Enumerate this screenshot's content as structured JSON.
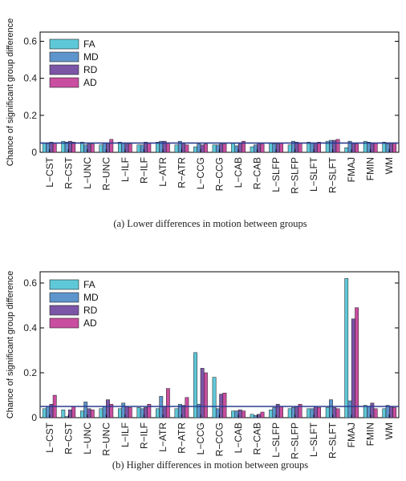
{
  "chart_data": [
    {
      "type": "bar",
      "caption": "(a) Lower differences in motion between groups",
      "ylabel": "Chance of significant group difference",
      "ylim": [
        0,
        0.65
      ],
      "yticks": [
        "0",
        "0.2",
        "0.4",
        "0.6"
      ],
      "reference_line": 0.05,
      "legend_position": "top-left",
      "categories": [
        "L−CST",
        "R−CST",
        "L−UNC",
        "R−UNC",
        "L−ILF",
        "R−ILF",
        "L−ATR",
        "R−ATR",
        "L−CCG",
        "R−CCG",
        "L−CAB",
        "R−CAB",
        "L−SLFP",
        "R−SLFP",
        "L−SLFT",
        "R−SLFT",
        "FMAJ",
        "FMIN",
        "WM"
      ],
      "series": [
        {
          "name": "FA",
          "color": "#5ec8d8",
          "values": [
            0.05,
            0.06,
            0.055,
            0.04,
            0.055,
            0.04,
            0.055,
            0.04,
            0.03,
            0.04,
            0.05,
            0.03,
            0.05,
            0.04,
            0.055,
            0.06,
            0.025,
            0.06,
            0.055
          ]
        },
        {
          "name": "MD",
          "color": "#5d95cc",
          "values": [
            0.045,
            0.055,
            0.04,
            0.05,
            0.05,
            0.04,
            0.06,
            0.06,
            0.045,
            0.04,
            0.035,
            0.04,
            0.045,
            0.06,
            0.05,
            0.065,
            0.06,
            0.055,
            0.045
          ]
        },
        {
          "name": "RD",
          "color": "#7b55a6",
          "values": [
            0.055,
            0.06,
            0.045,
            0.05,
            0.045,
            0.055,
            0.06,
            0.05,
            0.04,
            0.045,
            0.05,
            0.05,
            0.045,
            0.055,
            0.05,
            0.065,
            0.05,
            0.05,
            0.045
          ]
        },
        {
          "name": "AD",
          "color": "#c94ea0",
          "values": [
            0.05,
            0.055,
            0.045,
            0.07,
            0.045,
            0.05,
            0.05,
            0.04,
            0.045,
            0.045,
            0.06,
            0.045,
            0.05,
            0.05,
            0.055,
            0.07,
            0.045,
            0.05,
            0.05
          ]
        }
      ]
    },
    {
      "type": "bar",
      "caption": "(b) Higher differences in motion between groups",
      "ylabel": "Chance of significant group difference",
      "ylim": [
        0,
        0.65
      ],
      "yticks": [
        "0",
        "0.2",
        "0.4",
        "0.6"
      ],
      "reference_line": 0.05,
      "legend_position": "top-left",
      "categories": [
        "L−CST",
        "R−CST",
        "L−UNC",
        "R−UNC",
        "L−ILF",
        "R−ILF",
        "L−ATR",
        "R−ATR",
        "L−CCG",
        "R−CCG",
        "L−CAB",
        "R−CAB",
        "L−SLFP",
        "R−SLFP",
        "L−SLFT",
        "R−SLFT",
        "FMAJ",
        "FMIN",
        "WM"
      ],
      "series": [
        {
          "name": "FA",
          "color": "#5ec8d8",
          "values": [
            0.04,
            0.035,
            0.03,
            0.04,
            0.04,
            0.045,
            0.04,
            0.04,
            0.29,
            0.18,
            0.03,
            0.015,
            0.035,
            0.04,
            0.04,
            0.045,
            0.62,
            0.055,
            0.04
          ]
        },
        {
          "name": "MD",
          "color": "#5d95cc",
          "values": [
            0.05,
            0.005,
            0.07,
            0.05,
            0.065,
            0.04,
            0.095,
            0.06,
            0.06,
            0.04,
            0.03,
            0.01,
            0.045,
            0.045,
            0.04,
            0.08,
            0.075,
            0.05,
            0.055
          ]
        },
        {
          "name": "RD",
          "color": "#7b55a6",
          "values": [
            0.06,
            0.035,
            0.04,
            0.08,
            0.05,
            0.045,
            0.05,
            0.055,
            0.22,
            0.105,
            0.035,
            0.015,
            0.06,
            0.05,
            0.05,
            0.045,
            0.44,
            0.065,
            0.05
          ]
        },
        {
          "name": "AD",
          "color": "#c94ea0",
          "values": [
            0.1,
            0.05,
            0.035,
            0.06,
            0.045,
            0.06,
            0.13,
            0.09,
            0.2,
            0.11,
            0.03,
            0.025,
            0.05,
            0.06,
            0.045,
            0.04,
            0.49,
            0.04,
            0.045
          ]
        }
      ]
    }
  ]
}
